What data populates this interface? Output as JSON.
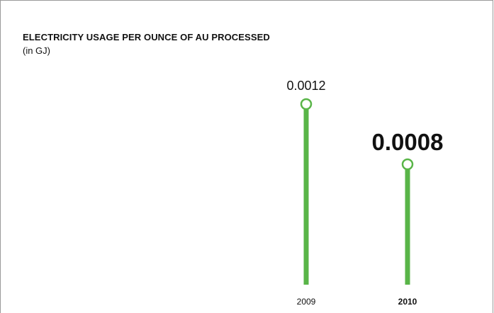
{
  "chart_data": {
    "type": "bar",
    "title": "ELECTRICITY USAGE PER OUNCE OF AU PROCESSED",
    "subtitle": "(in GJ)",
    "categories": [
      "2009",
      "2010"
    ],
    "values": [
      0.0012,
      0.0008
    ],
    "value_labels": [
      "0.0012",
      "0.0008"
    ],
    "highlight_index": 1,
    "ylim": [
      0,
      0.00165
    ],
    "grid": false,
    "colors": {
      "bar": "#59b548",
      "text": "#111111",
      "border": "#9a9a9a"
    }
  }
}
